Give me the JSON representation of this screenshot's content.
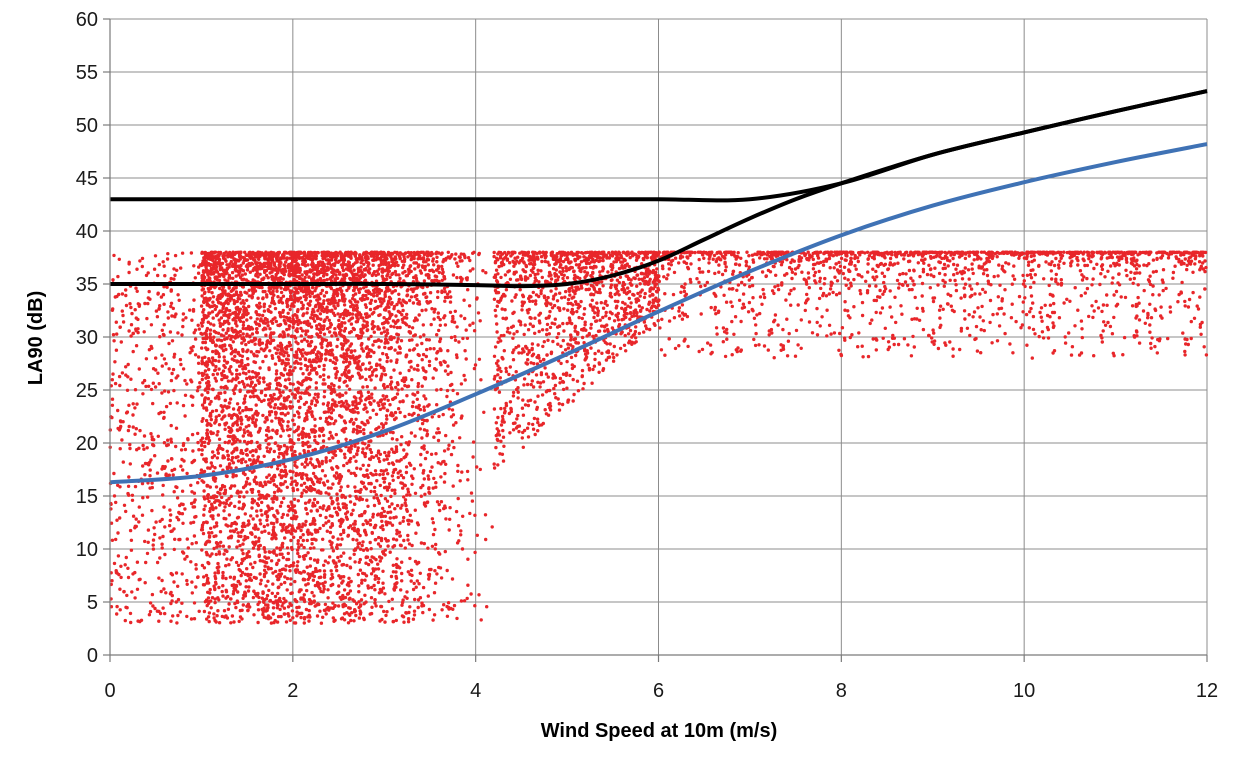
{
  "chart_data": {
    "type": "scatter",
    "title": "",
    "xlabel": "Wind Speed at 10m (m/s)",
    "ylabel": "LA90 (dB)",
    "xlim": [
      0,
      12
    ],
    "ylim": [
      0,
      60
    ],
    "x_ticks": [
      "0",
      "2",
      "4",
      "6",
      "8",
      "10",
      "12"
    ],
    "y_ticks": [
      "0",
      "5",
      "10",
      "15",
      "20",
      "25",
      "30",
      "35",
      "40",
      "45",
      "50",
      "55",
      "60"
    ],
    "grid": true,
    "legend": "none",
    "colors": {
      "scatter": "#e8262a",
      "upper_limit": "#000000",
      "lower_limit": "#000000",
      "fit": "#3f72b5",
      "grid": "#8c8c8c"
    },
    "series": [
      {
        "kind": "scatter",
        "description_points": "measured LA90 vs wind speed",
        "approx_count": 9000,
        "cap_y": 38,
        "density_regions": [
          {
            "x_range": [
              0,
              1
            ],
            "y_range": [
              3,
              38
            ],
            "share": 0.06
          },
          {
            "x_range": [
              1,
              4.2
            ],
            "y_range": [
              3,
              38
            ],
            "share": 0.62
          },
          {
            "x_range": [
              4.2,
              6
            ],
            "y_range": [
              17,
              38
            ],
            "share": 0.14
          },
          {
            "x_range": [
              6,
              12
            ],
            "y_range": [
              28,
              38
            ],
            "share": 0.18
          }
        ]
      },
      {
        "kind": "line",
        "x": [
          0,
          1,
          2,
          3,
          4,
          5,
          6,
          7,
          8,
          9,
          10,
          11,
          12
        ],
        "y": [
          43,
          43,
          43,
          43,
          43,
          43,
          43,
          43,
          44.5,
          47.2,
          49.3,
          51.3,
          53.2
        ]
      },
      {
        "kind": "line",
        "x": [
          0,
          1,
          2,
          3,
          4,
          4.5,
          5,
          5.5,
          6,
          6.5,
          7,
          7.5,
          8,
          9,
          10,
          11,
          12
        ],
        "y": [
          35,
          35,
          35,
          35,
          34.9,
          34.8,
          35,
          35.8,
          37.2,
          39.2,
          41.2,
          43,
          44.5,
          47.2,
          49.3,
          51.3,
          53.2
        ]
      },
      {
        "kind": "line",
        "x": [
          0,
          1,
          2,
          3,
          4,
          5,
          6,
          7,
          8,
          9,
          10,
          11,
          12
        ],
        "y": [
          16.3,
          16.9,
          18.5,
          21.1,
          24.6,
          28.4,
          32.4,
          36.2,
          39.6,
          42.4,
          44.6,
          46.5,
          48.2
        ]
      }
    ]
  }
}
